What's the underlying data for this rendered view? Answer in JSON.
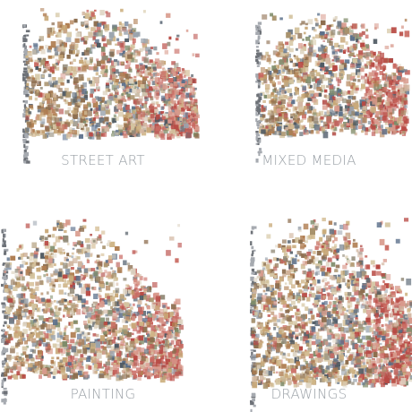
{
  "chart_data": [
    {
      "type": "scatter",
      "title": "STREET ART"
    },
    {
      "type": "scatter",
      "title": "MIXED MEDIA"
    },
    {
      "type": "scatter",
      "title": "PAINTING"
    },
    {
      "type": "scatter",
      "title": "DRAWINGS"
    }
  ],
  "colors": {
    "caption": "#9aa0a6",
    "palette": [
      "#c8a878",
      "#b07e52",
      "#8d6e4f",
      "#d4c4a0",
      "#9aa3ad",
      "#6f7a86",
      "#c96a62",
      "#b84a44",
      "#d89a8c",
      "#7f8c6a",
      "#5a6f8a",
      "#e0d7c6",
      "#a8926c",
      "#4f5a63",
      "#cfb587",
      "#bb5f5a",
      "#928a78",
      "#d2b6a0"
    ]
  }
}
